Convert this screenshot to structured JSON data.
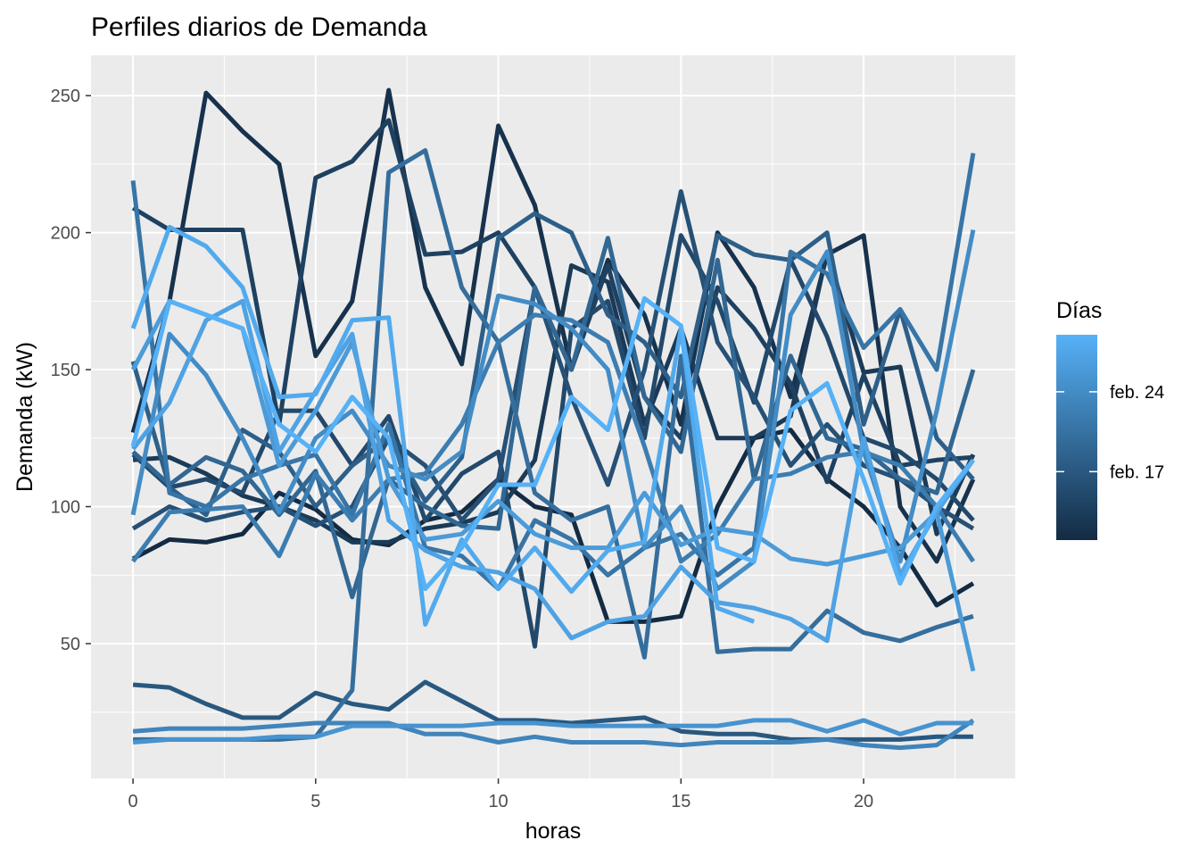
{
  "chart_data": {
    "type": "line",
    "title": "Perfiles diarios de Demanda",
    "xlabel": "horas",
    "ylabel": "Demanda (kW)",
    "xlim": [
      -1.15,
      24.15
    ],
    "ylim": [
      0.8,
      264.7
    ],
    "xticks": [
      0,
      5,
      10,
      15,
      20
    ],
    "yticks": [
      50,
      100,
      150,
      200,
      250
    ],
    "grid": true,
    "legend": {
      "title": "Días",
      "position": "right",
      "range_days": [
        11,
        29
      ],
      "labels": [
        {
          "text": "feb. 24",
          "day": 24
        },
        {
          "text": "feb. 17",
          "day": 17
        }
      ],
      "color_low": "#132B43",
      "color_high": "#56B1F7"
    },
    "x": [
      0,
      1,
      2,
      3,
      4,
      5,
      6,
      7,
      8,
      9,
      10,
      11,
      12,
      13,
      14,
      15,
      16,
      17,
      18,
      19,
      20,
      21,
      22,
      23
    ],
    "series": [
      {
        "day": 11,
        "values": [
          81,
          88,
          87,
          90,
          105,
          99,
          88,
          86,
          95,
          98,
          110,
          100,
          97,
          58,
          58,
          60,
          100,
          125,
          128,
          110,
          100,
          85,
          64,
          72
        ]
      },
      {
        "day": 12,
        "values": [
          127,
          175,
          251,
          237,
          225,
          155,
          175,
          252,
          180,
          152,
          239,
          210,
          150,
          190,
          170,
          130,
          200,
          180,
          140,
          192,
          199,
          100,
          80,
          110
        ]
      },
      {
        "day": 13,
        "values": [
          117,
          118,
          112,
          104,
          100,
          95,
          87,
          87,
          92,
          94,
          98,
          117,
          188,
          182,
          130,
          165,
          125,
          125,
          133,
          193,
          149,
          151,
          90,
          119
        ]
      },
      {
        "day": 14,
        "values": [
          209,
          201,
          201,
          201,
          130,
          220,
          226,
          241,
          192,
          193,
          200,
          180,
          150,
          188,
          140,
          125,
          180,
          165,
          145,
          109,
          148,
          115,
          117,
          118
        ]
      },
      {
        "day": 15,
        "values": [
          119,
          107,
          110,
          105,
          135,
          135,
          115,
          133,
          95,
          112,
          120,
          49,
          165,
          175,
          125,
          199,
          175,
          138,
          190,
          162,
          125,
          120,
          110,
          95
        ]
      },
      {
        "day": 16,
        "values": [
          92,
          100,
          95,
          98,
          100,
          93,
          100,
          125,
          115,
          95,
          110,
          180,
          140,
          108,
          150,
          215,
          160,
          140,
          115,
          130,
          115,
          110,
          100,
          92
        ]
      },
      {
        "day": 17,
        "values": [
          35,
          34,
          28,
          23,
          23,
          32,
          28,
          26,
          36,
          29,
          22,
          22,
          21,
          22,
          23,
          18,
          17,
          17,
          15,
          15,
          15,
          15,
          16,
          16
        ]
      },
      {
        "day": 18,
        "values": [
          153,
          107,
          97,
          128,
          120,
          100,
          115,
          125,
          102,
          118,
          198,
          207,
          200,
          170,
          160,
          140,
          199,
          192,
          190,
          200,
          130,
          172,
          125,
          110
        ]
      },
      {
        "day": 19,
        "values": [
          120,
          108,
          118,
          113,
          97,
          113,
          67,
          110,
          100,
          93,
          92,
          180,
          150,
          198,
          140,
          120,
          190,
          110,
          155,
          125,
          121,
          110,
          105,
          150
        ]
      },
      {
        "day": 20,
        "values": [
          15,
          15,
          15,
          15,
          15,
          16,
          33,
          222,
          230,
          180,
          160,
          105,
          95,
          100,
          45,
          155,
          47,
          48,
          48,
          62,
          54,
          51,
          56,
          60
        ]
      },
      {
        "day": 21,
        "values": [
          219,
          105,
          100,
          110,
          115,
          119,
          97,
          130,
          85,
          82,
          70,
          95,
          88,
          75,
          85,
          90,
          75,
          85,
          193,
          185,
          158,
          172,
          150,
          229
        ]
      },
      {
        "day": 22,
        "values": [
          80,
          98,
          99,
          100,
          82,
          112,
          95,
          110,
          112,
          130,
          160,
          170,
          168,
          160,
          122,
          80,
          90,
          110,
          112,
          118,
          120,
          115,
          100,
          80
        ]
      },
      {
        "day": 23,
        "values": [
          18,
          19,
          19,
          19,
          20,
          21,
          21,
          21,
          17,
          17,
          14,
          16,
          14,
          14,
          14,
          13,
          14,
          14,
          14,
          15,
          13,
          12,
          13,
          22
        ]
      },
      {
        "day": 24,
        "values": [
          97,
          163,
          148,
          125,
          98,
          125,
          135,
          115,
          110,
          120,
          177,
          174,
          165,
          150,
          85,
          100,
          70,
          80,
          170,
          193,
          120,
          80,
          135,
          201
        ]
      },
      {
        "day": 25,
        "values": [
          14,
          15,
          15,
          15,
          16,
          16,
          20,
          20,
          20,
          20,
          21,
          21,
          20,
          20,
          20,
          20,
          20,
          22,
          22,
          18,
          22,
          17,
          21,
          21
        ]
      },
      {
        "day": 26,
        "values": [
          150,
          175,
          170,
          165,
          115,
          135,
          160,
          110,
          88,
          90,
          102,
          90,
          85,
          85,
          105,
          86,
          92,
          90,
          81,
          79,
          82,
          85,
          98,
          40
        ]
      },
      {
        "day": 27,
        "values": [
          121,
          138,
          168,
          175,
          120,
          142,
          163,
          95,
          84,
          78,
          76,
          70,
          52,
          58,
          60,
          78,
          65,
          63,
          59,
          51,
          125,
          75,
          98,
          117
        ]
      },
      {
        "day": 28,
        "values": [
          165,
          202,
          195,
          180,
          140,
          141,
          168,
          169,
          57,
          88,
          70,
          85,
          69,
          84,
          87,
          165,
          63,
          58,
          null,
          null,
          null,
          null,
          null,
          null
        ]
      },
      {
        "day": 29,
        "values": [
          122,
          175,
          170,
          165,
          130,
          120,
          140,
          125,
          70,
          85,
          108,
          108,
          140,
          128,
          176,
          166,
          85,
          80,
          135,
          145,
          110,
          72,
          100,
          117
        ]
      }
    ]
  }
}
